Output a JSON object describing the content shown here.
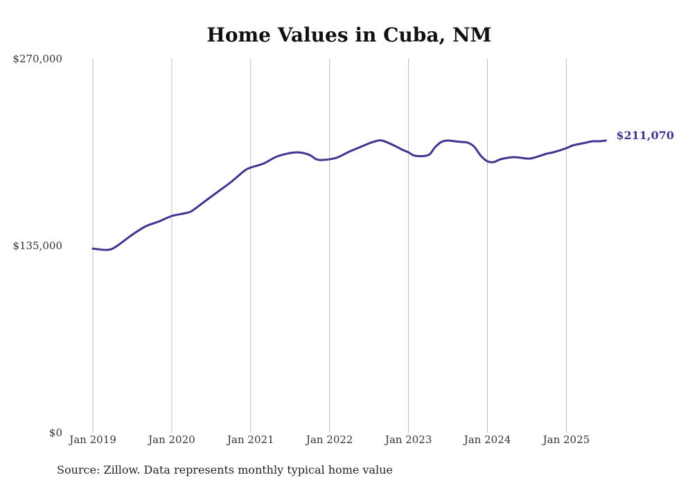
{
  "chart_data": {
    "type": "line",
    "title": "Home Values in Cuba, NM",
    "xlabel": "",
    "ylabel": "",
    "source": "Source: Zillow. Data represents monthly typical home value",
    "ylim": [
      0,
      270000
    ],
    "y_ticks": [
      {
        "value": 0,
        "label": "$0"
      },
      {
        "value": 135000,
        "label": "$135,000"
      },
      {
        "value": 270000,
        "label": "$270,000"
      }
    ],
    "x_ticks": [
      {
        "value": "2019-01",
        "label": "Jan 2019"
      },
      {
        "value": "2020-01",
        "label": "Jan 2020"
      },
      {
        "value": "2021-01",
        "label": "Jan 2021"
      },
      {
        "value": "2022-01",
        "label": "Jan 2022"
      },
      {
        "value": "2023-01",
        "label": "Jan 2023"
      },
      {
        "value": "2024-01",
        "label": "Jan 2024"
      },
      {
        "value": "2025-01",
        "label": "Jan 2025"
      }
    ],
    "grid": "vertical",
    "end_label": "$211,070",
    "line_color": "#3f3590",
    "series": [
      {
        "x": [
          "2019-01",
          "2019-03",
          "2019-04",
          "2019-05",
          "2019-07",
          "2019-09",
          "2019-11",
          "2020-01",
          "2020-03",
          "2020-04",
          "2020-06",
          "2020-08",
          "2020-10",
          "2020-12",
          "2021-01",
          "2021-03",
          "2021-05",
          "2021-07",
          "2021-08",
          "2021-09",
          "2021-10",
          "2021-11",
          "2021-12",
          "2022-02",
          "2022-04",
          "2022-06",
          "2022-07",
          "2022-08",
          "2022-09",
          "2022-11",
          "2022-12",
          "2023-01",
          "2023-02",
          "2023-04",
          "2023-05",
          "2023-06",
          "2023-07",
          "2023-08",
          "2023-09",
          "2023-10",
          "2023-11",
          "2023-12",
          "2024-01",
          "2024-02",
          "2024-03",
          "2024-05",
          "2024-07",
          "2024-08",
          "2024-10",
          "2024-11",
          "2025-01",
          "2025-02",
          "2025-04",
          "2025-05",
          "2025-06",
          "2025-07"
        ],
        "values": [
          133000,
          132000,
          133000,
          136000,
          143000,
          149000,
          152500,
          156500,
          158500,
          160000,
          167000,
          174000,
          181000,
          189000,
          191500,
          194500,
          199500,
          202000,
          202500,
          202000,
          200500,
          197500,
          197000,
          198500,
          203000,
          207000,
          209000,
          210500,
          211000,
          207000,
          204500,
          202500,
          200000,
          200500,
          206000,
          210000,
          211000,
          210500,
          210000,
          209500,
          206500,
          200000,
          196000,
          195500,
          197500,
          199000,
          198000,
          198500,
          201500,
          202500,
          205500,
          207500,
          209500,
          210500,
          210500,
          211070
        ]
      }
    ]
  }
}
